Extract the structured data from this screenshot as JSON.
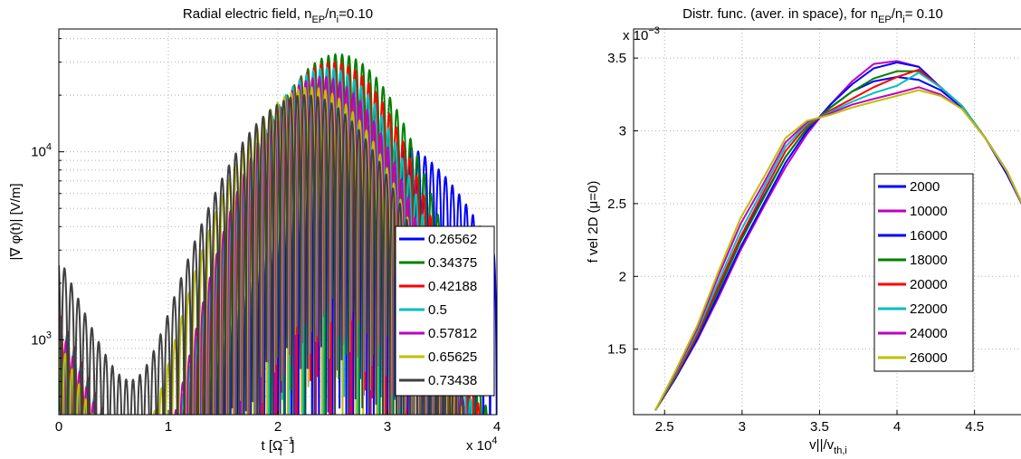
{
  "chart_data": [
    {
      "type": "line",
      "title": "Radial electric field, n_EP/n_i=0.10",
      "title_parts": {
        "base1": "Radial electric field, n",
        "sub1": "EP",
        "mid": "/n",
        "sub2": "i",
        "tail": "=0.10"
      },
      "xlabel": "t [Ω_i^-1]",
      "xlabel_parts": {
        "base": "t [Ω",
        "sup": "−1",
        "sub": "i",
        "tail": "]"
      },
      "ylabel": "|∇ φ(t)| [V/m]",
      "x_multiplier": "x 10^4",
      "x_multiplier_parts": {
        "base": "x 10",
        "sup": "4"
      },
      "xlim": [
        0,
        4
      ],
      "ylim": [
        400,
        45000
      ],
      "yscale": "log",
      "x_ticks": [
        "0",
        "1",
        "2",
        "3",
        "4"
      ],
      "y_ticks": [
        {
          "value": 1000,
          "base": "10",
          "sup": "3"
        },
        {
          "value": 10000,
          "base": "10",
          "sup": "4"
        }
      ],
      "grid": true,
      "legend_position": "lower-right",
      "oscillation_period": 0.0625,
      "series": [
        {
          "name": "0.26562",
          "color": "#0000ff",
          "peak": 12000,
          "peak_x": 2.9,
          "width": 0.9,
          "floor": 300,
          "start_amp": 600
        },
        {
          "name": "0.34375",
          "color": "#008000",
          "peak": 33000,
          "peak_x": 2.55,
          "width": 0.65,
          "floor": 300,
          "start_amp": 1100
        },
        {
          "name": "0.42188",
          "color": "#ff0000",
          "peak": 30000,
          "peak_x": 2.5,
          "width": 0.65,
          "floor": 300,
          "start_amp": 1400
        },
        {
          "name": "0.5",
          "color": "#00bfbf",
          "peak": 28000,
          "peak_x": 2.45,
          "width": 0.65,
          "floor": 300,
          "start_amp": 1300
        },
        {
          "name": "0.57812",
          "color": "#bf00bf",
          "peak": 25000,
          "peak_x": 2.4,
          "width": 0.65,
          "floor": 300,
          "start_amp": 1200
        },
        {
          "name": "0.65625",
          "color": "#bfbf00",
          "peak": 22000,
          "peak_x": 2.3,
          "width": 0.7,
          "floor": 300,
          "start_amp": 1000
        },
        {
          "name": "0.73438",
          "color": "#404040",
          "peak": 20000,
          "peak_x": 2.25,
          "width": 0.75,
          "floor": 300,
          "start_amp": 2800
        }
      ]
    },
    {
      "type": "line",
      "title": "Distr. func. (aver. in space), for n_EP/n_i= 0.10",
      "title_parts": {
        "base1": "Distr. func. (aver. in space), for n",
        "sub1": "EP",
        "mid": "/n",
        "sub2": "i",
        "tail": "= 0.10"
      },
      "xlabel": "v||/v_th,i",
      "xlabel_parts": {
        "base": "v||/v",
        "sub": "th,i"
      },
      "ylabel": "f vel 2D (μ=0)",
      "y_multiplier": "x 10^-3",
      "y_multiplier_parts": {
        "base": "x 10",
        "sup": "−3"
      },
      "xlim": [
        2.3,
        4.8
      ],
      "ylim": [
        1.05,
        3.7
      ],
      "x_ticks": [
        "2.5",
        "3",
        "3.5",
        "4",
        "4.5"
      ],
      "y_ticks": [
        "1.5",
        "2",
        "2.5",
        "3",
        "3.5"
      ],
      "grid": true,
      "legend_position": "right",
      "x": [
        2.44,
        2.57,
        2.71,
        2.85,
        2.99,
        3.14,
        3.28,
        3.42,
        3.57,
        3.71,
        3.85,
        4.0,
        4.14,
        4.28,
        4.42,
        4.57,
        4.71,
        4.85
      ],
      "series": [
        {
          "name": "2000",
          "color": "#0000ff",
          "values": [
            1.08,
            1.32,
            1.6,
            1.92,
            2.25,
            2.55,
            2.82,
            3.02,
            3.16,
            3.27,
            3.34,
            3.37,
            3.35,
            3.28,
            3.16,
            2.95,
            2.7,
            2.4
          ]
        },
        {
          "name": "10000",
          "color": "#bf00bf",
          "values": [
            1.08,
            1.3,
            1.56,
            1.86,
            2.18,
            2.48,
            2.75,
            2.98,
            3.18,
            3.34,
            3.46,
            3.48,
            3.44,
            3.3,
            3.17,
            2.95,
            2.72,
            2.4
          ]
        },
        {
          "name": "16000",
          "color": "#0000ff",
          "values": [
            1.08,
            1.3,
            1.57,
            1.88,
            2.2,
            2.5,
            2.78,
            3.0,
            3.18,
            3.32,
            3.43,
            3.47,
            3.44,
            3.3,
            3.17,
            2.95,
            2.72,
            2.4
          ]
        },
        {
          "name": "18000",
          "color": "#008000",
          "values": [
            1.08,
            1.31,
            1.59,
            1.91,
            2.24,
            2.54,
            2.82,
            3.02,
            3.16,
            3.27,
            3.36,
            3.41,
            3.41,
            3.3,
            3.17,
            2.95,
            2.72,
            2.4
          ]
        },
        {
          "name": "20000",
          "color": "#ff0000",
          "values": [
            1.08,
            1.32,
            1.6,
            1.94,
            2.27,
            2.58,
            2.86,
            3.04,
            3.14,
            3.22,
            3.3,
            3.37,
            3.42,
            3.3,
            3.17,
            2.95,
            2.72,
            2.4
          ]
        },
        {
          "name": "22000",
          "color": "#00bfbf",
          "values": [
            1.08,
            1.33,
            1.62,
            1.97,
            2.31,
            2.61,
            2.89,
            3.05,
            3.13,
            3.2,
            3.26,
            3.31,
            3.4,
            3.3,
            3.17,
            2.95,
            2.72,
            2.4
          ]
        },
        {
          "name": "24000",
          "color": "#bf00bf",
          "values": [
            1.08,
            1.34,
            1.64,
            2.01,
            2.36,
            2.64,
            2.92,
            3.06,
            3.12,
            3.18,
            3.22,
            3.26,
            3.3,
            3.25,
            3.15,
            2.95,
            2.72,
            2.4
          ]
        },
        {
          "name": "26000",
          "color": "#bfbf00",
          "values": [
            1.08,
            1.35,
            1.66,
            2.04,
            2.4,
            2.68,
            2.95,
            3.07,
            3.11,
            3.16,
            3.2,
            3.24,
            3.28,
            3.24,
            3.15,
            2.95,
            2.72,
            2.4
          ]
        }
      ]
    }
  ]
}
